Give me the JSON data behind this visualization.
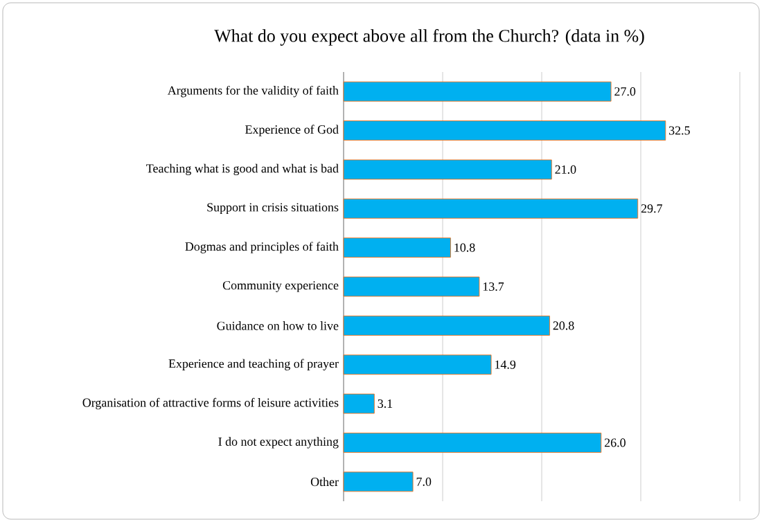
{
  "chart_data": {
    "type": "bar",
    "orientation": "horizontal",
    "title": "What do you expect above all from the Church? (data in %)",
    "categories": [
      "Arguments for the validity of faith",
      "Experience of God",
      "Teaching what is good and what is bad",
      "Support in crisis situations",
      "Dogmas and principles of faith",
      "Community experience",
      "Guidance on how to live",
      "Experience and teaching of prayer",
      "Organisation of attractive forms of leisure activities",
      "I do not expect anything",
      "Other"
    ],
    "values": [
      27.0,
      32.5,
      21.0,
      29.7,
      10.8,
      13.7,
      20.8,
      14.9,
      3.1,
      26.0,
      7.0
    ],
    "color": "#00b0f0",
    "xlim": [
      0,
      40
    ],
    "xticks": [
      {
        "value": 0,
        "label": null
      },
      {
        "value": 10,
        "label": null
      },
      {
        "value": 20,
        "label": null
      },
      {
        "value": 30,
        "label": null
      },
      {
        "value": 40,
        "label": null
      }
    ],
    "value_labels": [
      "27.0",
      "32.5",
      "21.0",
      "29.7",
      "10.8",
      "13.7",
      "20.8",
      "14.9",
      "3.1",
      "26.0",
      "7.0"
    ],
    "tick_labels": "y",
    "grid": "x"
  }
}
